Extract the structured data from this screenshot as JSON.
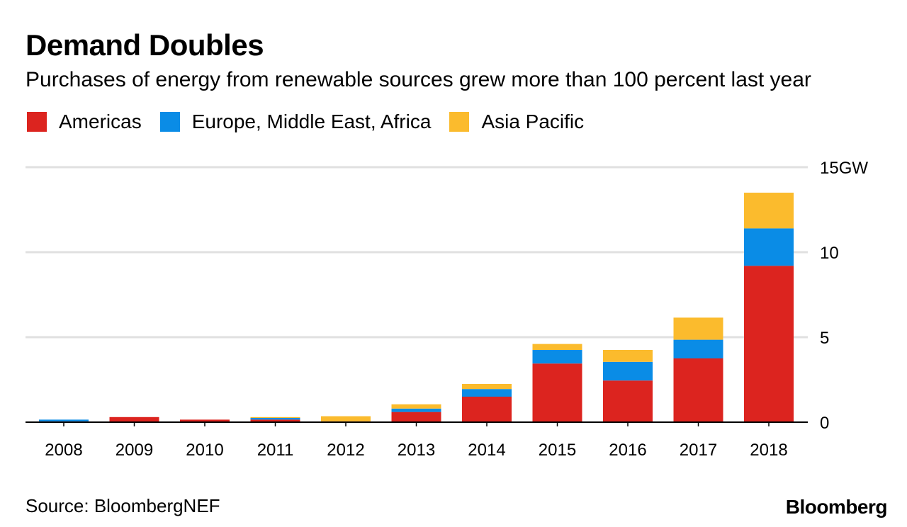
{
  "chart_data": {
    "type": "bar",
    "stacked": true,
    "title": "Demand Doubles",
    "subtitle": "Purchases of energy from renewable sources grew more than 100 percent last year",
    "categories": [
      "2008",
      "2009",
      "2010",
      "2011",
      "2012",
      "2013",
      "2014",
      "2015",
      "2016",
      "2017",
      "2018"
    ],
    "series": [
      {
        "name": "Americas",
        "color": "#dc241f",
        "values": [
          0.05,
          0.3,
          0.15,
          0.15,
          0.05,
          0.6,
          1.5,
          3.45,
          2.45,
          3.75,
          9.2
        ]
      },
      {
        "name": "Europe, Middle East, Africa",
        "color": "#0a8ce6",
        "values": [
          0.1,
          0.0,
          0.0,
          0.1,
          0.0,
          0.2,
          0.45,
          0.8,
          1.1,
          1.1,
          2.2
        ]
      },
      {
        "name": "Asia Pacific",
        "color": "#fbbb2d",
        "values": [
          0.0,
          0.0,
          0.0,
          0.05,
          0.3,
          0.25,
          0.3,
          0.35,
          0.7,
          1.3,
          2.1
        ]
      }
    ],
    "y_ticks": [
      "15GW",
      "10",
      "5",
      "0"
    ],
    "y_tick_values": [
      15,
      10,
      5,
      0
    ],
    "ylim": [
      0,
      15
    ],
    "grid": true,
    "legend_position": "top-left",
    "xlabel": "",
    "ylabel": ""
  },
  "source": "Source: BloombergNEF",
  "logo_text": "Bloomberg",
  "colors": {
    "gridline": "#e0e0e0",
    "axis": "#000000"
  }
}
